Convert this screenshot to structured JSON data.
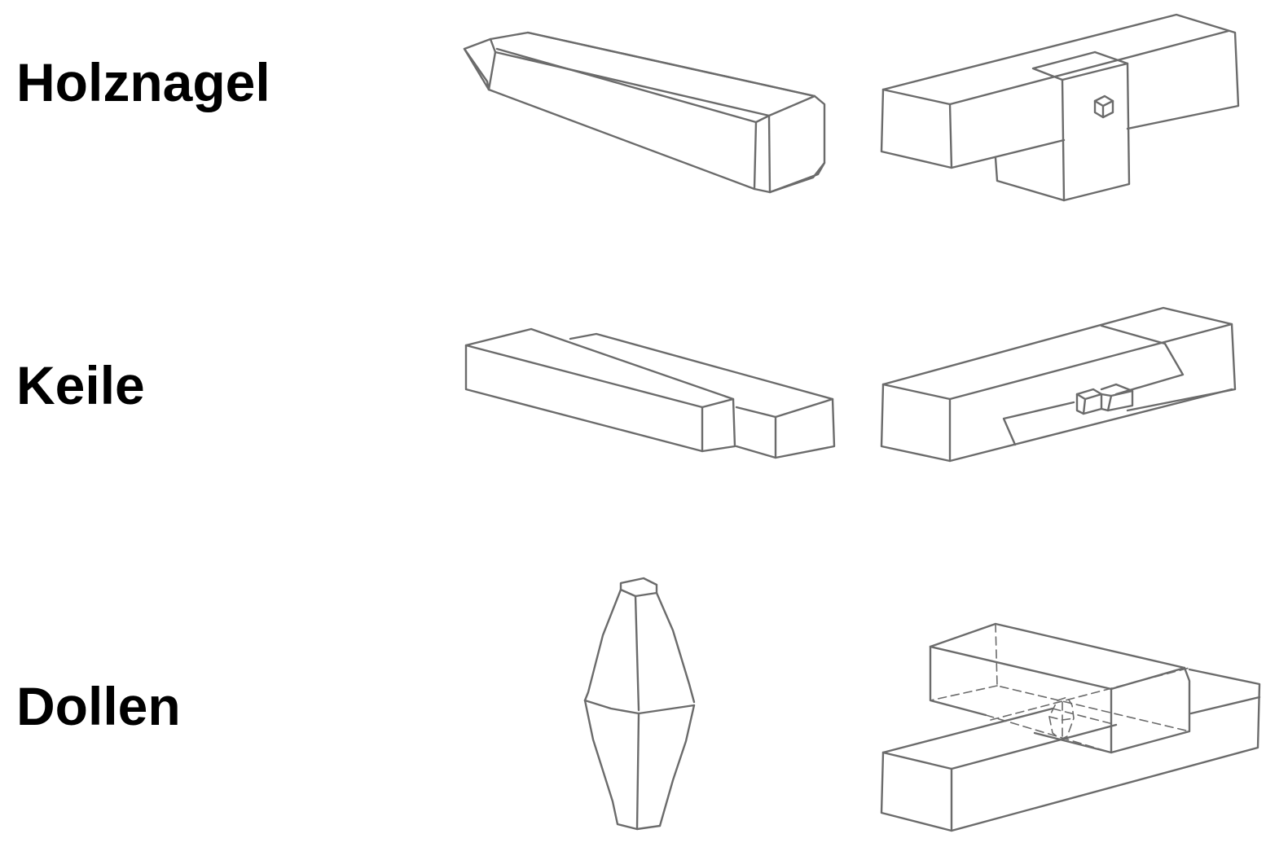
{
  "labels": {
    "row1": "Holznagel",
    "row2": "Keile",
    "row3": "Dollen"
  }
}
